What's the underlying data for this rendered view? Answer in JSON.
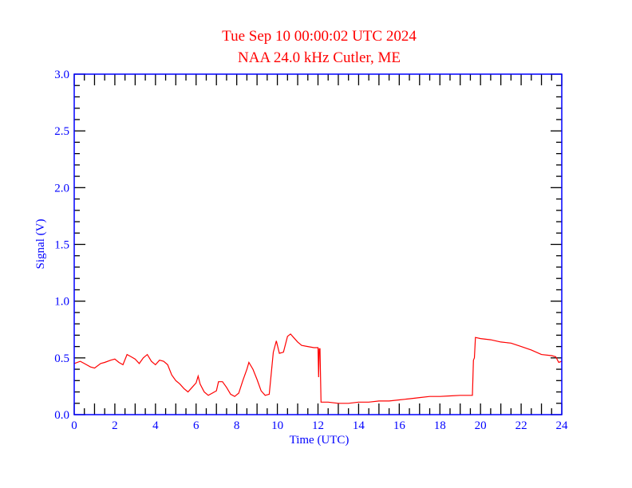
{
  "chart_data": {
    "type": "line",
    "title": "Tue Sep 10 00:00:02 UTC 2024",
    "subtitle": "NAA 24.0 kHz Cutler, ME",
    "xlabel": "Time (UTC)",
    "ylabel": "Signal (V)",
    "xlim": [
      0,
      24
    ],
    "ylim": [
      0,
      3.0
    ],
    "xticks": [
      "0",
      "2",
      "4",
      "6",
      "8",
      "10",
      "12",
      "14",
      "16",
      "18",
      "20",
      "22",
      "24"
    ],
    "yticks": [
      "0.0",
      "0.5",
      "1.0",
      "1.5",
      "2.0",
      "2.5",
      "3.0"
    ],
    "grid": false,
    "colors": {
      "line": "#ff0000",
      "axes": "#0000ff",
      "title": "#ff0000",
      "ticks": "#000000"
    },
    "series": [
      {
        "x": [
          0,
          0.3,
          0.5,
          0.8,
          1.0,
          1.3,
          1.5,
          1.8,
          2.0,
          2.2,
          2.4,
          2.6,
          2.8,
          3.0,
          3.2,
          3.4,
          3.6,
          3.8,
          4.0,
          4.2,
          4.4,
          4.6,
          4.8,
          5.0,
          5.2,
          5.4,
          5.6,
          5.8,
          6.0,
          6.1,
          6.2,
          6.4,
          6.6,
          6.8,
          7.0,
          7.1,
          7.3,
          7.5,
          7.7,
          7.9,
          8.1,
          8.3,
          8.5,
          8.6,
          8.8,
          9.0,
          9.2,
          9.4,
          9.6,
          9.8,
          9.95,
          10.1,
          10.3,
          10.5,
          10.65,
          10.8,
          11.0,
          11.2,
          11.5,
          11.8,
          12.0,
          12.03,
          12.06,
          12.1,
          12.15,
          12.5,
          13.0,
          13.5,
          14.0,
          14.5,
          15.0,
          15.5,
          16.0,
          16.5,
          17.0,
          17.5,
          18.0,
          18.5,
          19.0,
          19.5,
          19.6,
          19.65,
          19.7,
          19.75,
          20.0,
          20.5,
          21.0,
          21.5,
          22.0,
          22.5,
          23.0,
          23.5,
          23.7,
          23.85,
          24.0
        ],
        "y": [
          0.45,
          0.47,
          0.45,
          0.42,
          0.41,
          0.45,
          0.46,
          0.48,
          0.49,
          0.46,
          0.44,
          0.53,
          0.51,
          0.49,
          0.45,
          0.5,
          0.53,
          0.47,
          0.44,
          0.48,
          0.47,
          0.44,
          0.35,
          0.3,
          0.27,
          0.23,
          0.2,
          0.24,
          0.28,
          0.34,
          0.27,
          0.2,
          0.17,
          0.19,
          0.21,
          0.29,
          0.29,
          0.24,
          0.18,
          0.16,
          0.19,
          0.3,
          0.4,
          0.46,
          0.4,
          0.31,
          0.21,
          0.17,
          0.18,
          0.55,
          0.65,
          0.54,
          0.55,
          0.69,
          0.71,
          0.68,
          0.64,
          0.61,
          0.6,
          0.59,
          0.59,
          0.33,
          0.58,
          0.58,
          0.11,
          0.11,
          0.1,
          0.1,
          0.11,
          0.11,
          0.12,
          0.12,
          0.13,
          0.14,
          0.15,
          0.16,
          0.16,
          0.165,
          0.17,
          0.17,
          0.17,
          0.48,
          0.5,
          0.68,
          0.67,
          0.66,
          0.64,
          0.63,
          0.6,
          0.57,
          0.53,
          0.52,
          0.51,
          0.46,
          0.47
        ]
      }
    ]
  }
}
